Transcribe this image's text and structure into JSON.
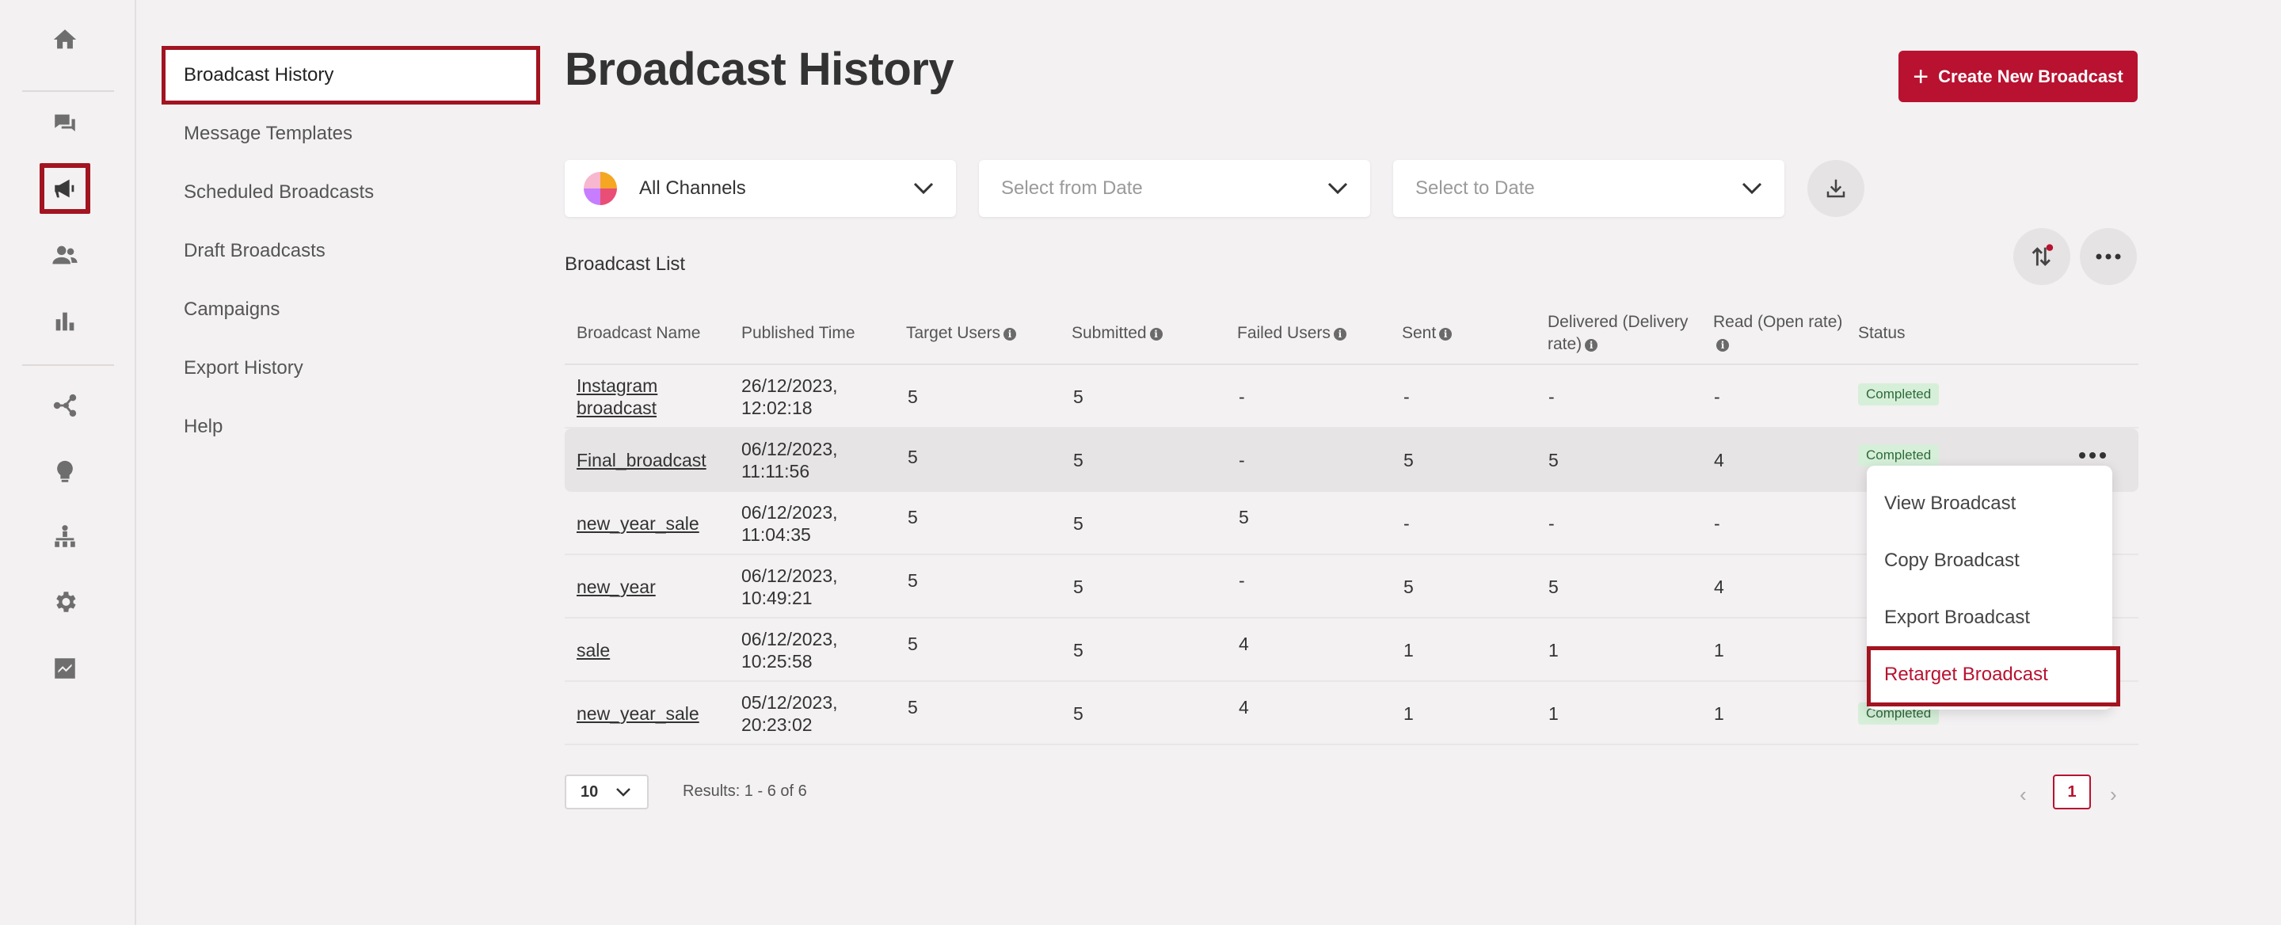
{
  "rail": {
    "icons": [
      "home-icon",
      "chat-icon",
      "megaphone-icon",
      "users-icon",
      "bar-chart-icon",
      "flow-icon",
      "bulb-icon",
      "org-chart-icon",
      "gear-icon",
      "integrations-icon"
    ]
  },
  "subnav": {
    "items": [
      {
        "label": "Broadcast History",
        "active": true
      },
      {
        "label": "Message Templates"
      },
      {
        "label": "Scheduled Broadcasts"
      },
      {
        "label": "Draft Broadcasts"
      },
      {
        "label": "Campaigns"
      },
      {
        "label": "Export History"
      },
      {
        "label": "Help"
      }
    ]
  },
  "header": {
    "title": "Broadcast History",
    "create_button": "Create New Broadcast"
  },
  "filters": {
    "channel": "All Channels",
    "from_date_placeholder": "Select from Date",
    "to_date_placeholder": "Select to Date"
  },
  "list": {
    "title": "Broadcast List",
    "columns": {
      "name": "Broadcast Name",
      "published": "Published Time",
      "target": "Target Users",
      "submitted": "Submitted",
      "failed": "Failed Users",
      "sent": "Sent",
      "delivered_1": "Delivered (Delivery",
      "delivered_2": "rate)",
      "read_1": "Read (Open rate)",
      "status": "Status"
    },
    "rows": [
      {
        "name_1": "Instagram",
        "name_2": "broadcast",
        "date": "26/12/2023,",
        "time": "12:02:18",
        "target": "5",
        "submitted": "5",
        "failed": "-",
        "sent": "-",
        "delivered": "-",
        "read": "-",
        "status": "Completed"
      },
      {
        "name_1": "Final_broadcast",
        "date": "06/12/2023,",
        "time": "11:11:56",
        "target": "5",
        "submitted": "5",
        "failed": "-",
        "sent": "5",
        "delivered": "5",
        "read": "4",
        "status": "Completed"
      },
      {
        "name_1": "new_year_sale",
        "date": "06/12/2023,",
        "time": "11:04:35",
        "target": "5",
        "submitted": "5",
        "failed": "5",
        "sent": "-",
        "delivered": "-",
        "read": "-",
        "status": "Completed"
      },
      {
        "name_1": "new_year",
        "date": "06/12/2023,",
        "time": "10:49:21",
        "target": "5",
        "submitted": "5",
        "failed": "-",
        "sent": "5",
        "delivered": "5",
        "read": "4",
        "status": "Completed"
      },
      {
        "name_1": "sale",
        "date": "06/12/2023,",
        "time": "10:25:58",
        "target": "5",
        "submitted": "5",
        "failed": "4",
        "sent": "1",
        "delivered": "1",
        "read": "1",
        "status": "Completed"
      },
      {
        "name_1": "new_year_sale",
        "date": "05/12/2023,",
        "time": "20:23:02",
        "target": "5",
        "submitted": "5",
        "failed": "4",
        "sent": "1",
        "delivered": "1",
        "read": "1",
        "status": "Completed"
      }
    ]
  },
  "row_menu": {
    "items": [
      "View Broadcast",
      "Copy Broadcast",
      "Export Broadcast",
      "Retarget Broadcast"
    ]
  },
  "pagination": {
    "page_size": "10",
    "results": "Results: 1 - 6 of 6",
    "current_page": "1"
  },
  "colors": {
    "brand": "#b81230",
    "highlight_border": "#a21420",
    "status_bg": "#d6efd9"
  }
}
